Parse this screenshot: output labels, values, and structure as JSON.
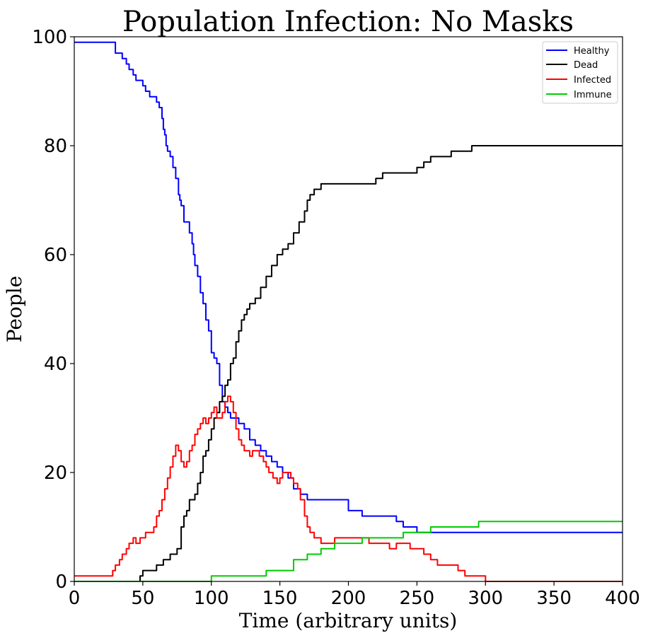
{
  "chart_data": {
    "type": "line",
    "title": "Population Infection: No Masks",
    "xlabel": "Time (arbitrary units)",
    "ylabel": "People",
    "xlim": [
      0,
      400
    ],
    "ylim": [
      0,
      100
    ],
    "xticks": [
      0,
      50,
      100,
      150,
      200,
      250,
      300,
      350,
      400
    ],
    "yticks": [
      0,
      20,
      40,
      60,
      80,
      100
    ],
    "grid": false,
    "legend_position": "upper-right",
    "series": [
      {
        "name": "Healthy",
        "color": "#0000ff",
        "x": [
          0,
          25,
          30,
          33,
          35,
          38,
          40,
          43,
          45,
          50,
          52,
          55,
          60,
          62,
          64,
          65,
          66,
          67,
          68,
          70,
          72,
          74,
          76,
          77,
          78,
          80,
          82,
          84,
          86,
          87,
          88,
          90,
          92,
          94,
          96,
          98,
          100,
          102,
          104,
          106,
          108,
          110,
          112,
          114,
          116,
          120,
          124,
          128,
          132,
          136,
          140,
          144,
          148,
          152,
          156,
          160,
          165,
          170,
          180,
          190,
          200,
          210,
          220,
          235,
          240,
          250,
          260,
          400
        ],
        "y": [
          99,
          99,
          97,
          97,
          96,
          95,
          94,
          93,
          92,
          91,
          90,
          89,
          88,
          87,
          85,
          83,
          82,
          80,
          79,
          78,
          76,
          74,
          71,
          70,
          69,
          66,
          66,
          64,
          62,
          60,
          58,
          56,
          53,
          51,
          48,
          46,
          42,
          41,
          40,
          36,
          33,
          32,
          31,
          30,
          30,
          29,
          28,
          26,
          25,
          24,
          23,
          22,
          21,
          20,
          19,
          17,
          16,
          15,
          15,
          15,
          13,
          12,
          12,
          11,
          10,
          9,
          9,
          9
        ]
      },
      {
        "name": "Dead",
        "color": "#000000",
        "x": [
          0,
          45,
          48,
          50,
          55,
          60,
          62,
          65,
          68,
          70,
          75,
          78,
          80,
          82,
          84,
          86,
          88,
          90,
          92,
          94,
          96,
          98,
          100,
          102,
          104,
          106,
          108,
          110,
          112,
          114,
          116,
          118,
          120,
          122,
          124,
          126,
          128,
          132,
          136,
          140,
          144,
          148,
          152,
          156,
          160,
          164,
          168,
          170,
          172,
          175,
          180,
          200,
          210,
          220,
          225,
          230,
          240,
          250,
          255,
          260,
          275,
          280,
          290,
          300,
          400
        ],
        "y": [
          0,
          0,
          1,
          2,
          2,
          3,
          3,
          4,
          4,
          5,
          6,
          10,
          12,
          13,
          15,
          15,
          16,
          18,
          20,
          23,
          24,
          26,
          28,
          30,
          31,
          33,
          34,
          36,
          37,
          40,
          41,
          44,
          46,
          48,
          49,
          50,
          51,
          52,
          54,
          56,
          58,
          60,
          61,
          62,
          64,
          66,
          68,
          70,
          71,
          72,
          73,
          73,
          73,
          74,
          75,
          75,
          75,
          76,
          77,
          78,
          79,
          79,
          80,
          80,
          80
        ]
      },
      {
        "name": "Infected",
        "color": "#ff0000",
        "x": [
          0,
          25,
          28,
          30,
          33,
          35,
          38,
          40,
          43,
          45,
          48,
          50,
          52,
          55,
          58,
          60,
          62,
          64,
          66,
          68,
          70,
          72,
          74,
          76,
          78,
          80,
          82,
          84,
          86,
          88,
          90,
          92,
          94,
          96,
          98,
          100,
          102,
          104,
          106,
          108,
          110,
          112,
          114,
          116,
          118,
          120,
          122,
          124,
          126,
          128,
          130,
          132,
          135,
          138,
          140,
          142,
          145,
          148,
          150,
          152,
          155,
          158,
          160,
          163,
          165,
          168,
          170,
          172,
          175,
          180,
          185,
          190,
          195,
          200,
          205,
          210,
          215,
          220,
          225,
          230,
          235,
          240,
          245,
          250,
          255,
          260,
          265,
          270,
          275,
          280,
          285,
          290,
          295,
          300,
          400
        ],
        "y": [
          1,
          1,
          2,
          3,
          4,
          5,
          6,
          7,
          8,
          7,
          8,
          8,
          9,
          9,
          10,
          12,
          13,
          15,
          17,
          19,
          21,
          23,
          25,
          24,
          22,
          21,
          22,
          24,
          25,
          27,
          28,
          29,
          30,
          29,
          30,
          31,
          32,
          30,
          30,
          31,
          33,
          34,
          33,
          31,
          28,
          26,
          25,
          24,
          24,
          23,
          24,
          24,
          23,
          22,
          21,
          20,
          19,
          18,
          19,
          20,
          20,
          19,
          18,
          17,
          15,
          12,
          10,
          9,
          8,
          7,
          7,
          8,
          8,
          8,
          8,
          8,
          7,
          7,
          7,
          6,
          7,
          7,
          6,
          6,
          5,
          4,
          3,
          3,
          3,
          2,
          1,
          1,
          1,
          0,
          0
        ]
      },
      {
        "name": "Immune",
        "color": "#00cc00",
        "x": [
          0,
          99,
          100,
          139,
          140,
          159,
          160,
          169,
          170,
          179,
          180,
          189,
          190,
          209,
          210,
          239,
          240,
          259,
          260,
          294,
          295,
          400
        ],
        "y": [
          0,
          0,
          1,
          1,
          2,
          2,
          4,
          4,
          5,
          5,
          6,
          6,
          7,
          7,
          8,
          8,
          9,
          9,
          10,
          10,
          11,
          11
        ]
      }
    ]
  }
}
